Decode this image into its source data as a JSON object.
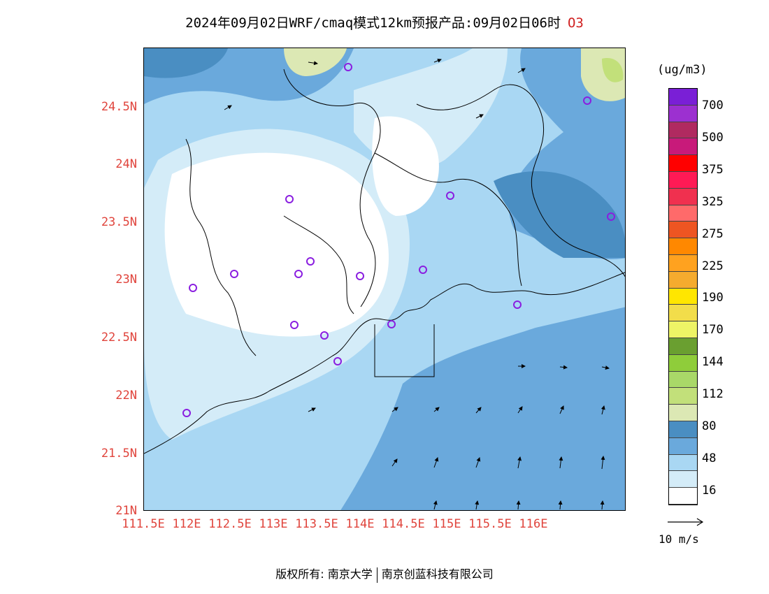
{
  "title": {
    "main": "2024年09月02日WRF/cmaq模式12km预报产品:09月02日06时",
    "species": "O3"
  },
  "map": {
    "lat_labels": [
      "24.5N",
      "24N",
      "23.5N",
      "23N",
      "22.5N",
      "22N",
      "21.5N",
      "21N"
    ],
    "lon_labels": [
      "111.5E",
      "112E",
      "112.5E",
      "113E",
      "113.5E",
      "114E",
      "114.5E",
      "115E",
      "115.5E",
      "116E"
    ]
  },
  "colorbar": {
    "unit": "(ug/m3)",
    "colors": [
      "#7a1fd6",
      "#9c30d0",
      "#b02a60",
      "#c81a7a",
      "#ff0000",
      "#ff1a55",
      "#f0304f",
      "#ff6a6a",
      "#ee5522",
      "#ff8800",
      "#ffa21f",
      "#f5ab2e",
      "#ffe600",
      "#f2dd4a",
      "#eef466",
      "#6a9f30",
      "#8fcd3a",
      "#a9d868",
      "#c2e07a",
      "#dce8b4",
      "#4a8ec2",
      "#6aa9dc",
      "#a9d7f3",
      "#d4ecf8",
      "#ffffff"
    ],
    "labels": [
      "700",
      "500",
      "375",
      "325",
      "275",
      "225",
      "190",
      "170",
      "144",
      "112",
      "80",
      "48",
      "16"
    ]
  },
  "legend": {
    "ref_speed": "10 m/s"
  },
  "footer": {
    "copyright": "版权所有: 南京大学",
    "company": "南京创蓝科技有限公司"
  }
}
